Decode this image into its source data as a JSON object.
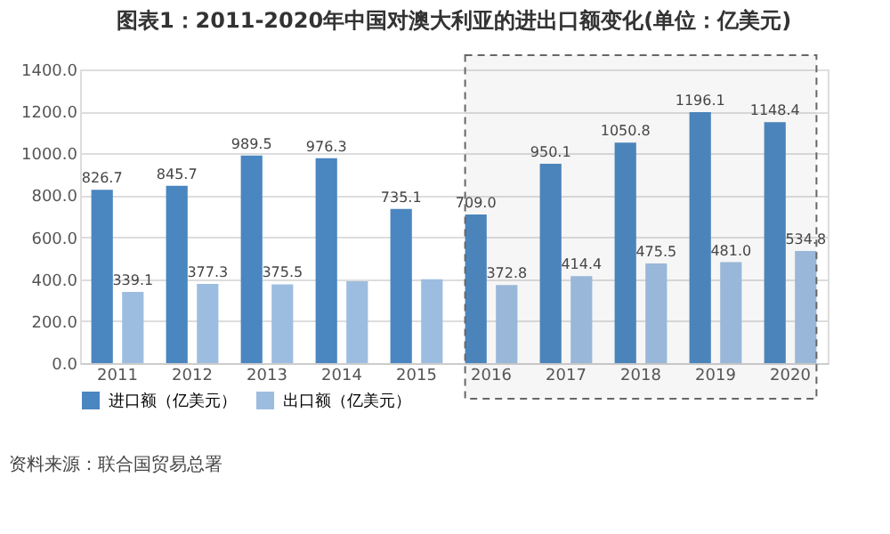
{
  "chart_data": {
    "type": "bar",
    "title": "图表1：2011-2020年中国对澳大利亚的进出口额变化(单位：亿美元)",
    "categories": [
      "2011",
      "2012",
      "2013",
      "2014",
      "2015",
      "2016",
      "2017",
      "2018",
      "2019",
      "2020"
    ],
    "series": [
      {
        "name": "进口额（亿美元）",
        "color": "#4a86c0",
        "values": [
          826.7,
          845.7,
          989.5,
          976.3,
          735.1,
          709.0,
          950.1,
          1050.8,
          1196.1,
          1148.4
        ],
        "value_labels": [
          "826.7",
          "845.7",
          "989.5",
          "976.3",
          "735.1",
          "709.0",
          "950.1",
          "1050.8",
          "1196.1",
          "1148.4"
        ]
      },
      {
        "name": "出口额（亿美元）",
        "color": "#9dbde0",
        "values": [
          339.1,
          377.3,
          375.5,
          390,
          400,
          372.8,
          414.4,
          475.5,
          481.0,
          534.8
        ],
        "value_labels": [
          "339.1",
          "377.3",
          "375.5",
          null,
          null,
          "372.8",
          "414.4",
          "475.5",
          "481.0",
          "534.8"
        ]
      }
    ],
    "ylim": [
      0,
      1400
    ],
    "yticks": [
      {
        "value": 0,
        "label": "0.0"
      },
      {
        "value": 200,
        "label": "200.0"
      },
      {
        "value": 400,
        "label": "400.0"
      },
      {
        "value": 600,
        "label": "600.0"
      },
      {
        "value": 800,
        "label": "800.0"
      },
      {
        "value": 1000,
        "label": "1000.0"
      },
      {
        "value": 1200,
        "label": "1200.0"
      },
      {
        "value": 1400,
        "label": "1400.0"
      }
    ],
    "grid": "y",
    "legend": "bottom",
    "bands": [
      {
        "axis": "x",
        "from": "2016",
        "to": "2020",
        "color": "#666666"
      }
    ],
    "annotations": [
      "资料来源：联合国贸易总署"
    ]
  }
}
